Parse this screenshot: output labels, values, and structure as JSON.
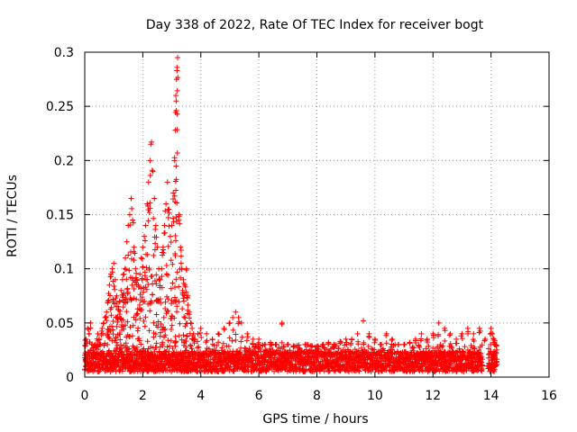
{
  "chart_data": {
    "type": "scatter",
    "title": "Day 338 of 2022, Rate Of TEC Index for receiver bogt",
    "xlabel": "GPS time / hours",
    "ylabel": "ROTI / TECUs",
    "xlim": [
      0,
      16
    ],
    "ylim": [
      0,
      0.3
    ],
    "xticks": [
      0,
      2,
      4,
      6,
      8,
      10,
      12,
      14,
      16
    ],
    "yticks": [
      0,
      0.05,
      0.1,
      0.15,
      0.2,
      0.25,
      0.3
    ],
    "xtick_labels": [
      "0",
      "2",
      "4",
      "6",
      "8",
      "10",
      "12",
      "14",
      "16"
    ],
    "ytick_labels": [
      "0",
      "0.05",
      "0.1",
      "0.15",
      "0.2",
      "0.25",
      "0.3"
    ],
    "grid": true,
    "marker": "+",
    "marker_color": "#ff0000",
    "series": [
      {
        "name": "ROTI",
        "points": [
          [
            0.0,
            0.02
          ],
          [
            0.05,
            0.035
          ],
          [
            0.1,
            0.045
          ],
          [
            0.15,
            0.04
          ],
          [
            0.2,
            0.05
          ],
          [
            0.25,
            0.03
          ],
          [
            0.3,
            0.025
          ],
          [
            0.35,
            0.02
          ],
          [
            0.4,
            0.028
          ],
          [
            0.45,
            0.04
          ],
          [
            0.5,
            0.035
          ],
          [
            0.55,
            0.03
          ],
          [
            0.6,
            0.045
          ],
          [
            0.65,
            0.05
          ],
          [
            0.7,
            0.055
          ],
          [
            0.75,
            0.06
          ],
          [
            0.8,
            0.07
          ],
          [
            0.85,
            0.085
          ],
          [
            0.9,
            0.095
          ],
          [
            0.95,
            0.1
          ],
          [
            1.0,
            0.105
          ],
          [
            1.05,
            0.09
          ],
          [
            1.1,
            0.075
          ],
          [
            1.15,
            0.065
          ],
          [
            1.2,
            0.07
          ],
          [
            1.25,
            0.08
          ],
          [
            1.3,
            0.09
          ],
          [
            1.35,
            0.095
          ],
          [
            1.4,
            0.11
          ],
          [
            1.45,
            0.125
          ],
          [
            1.5,
            0.14
          ],
          [
            1.55,
            0.15
          ],
          [
            1.6,
            0.165
          ],
          [
            1.65,
            0.145
          ],
          [
            1.7,
            0.12
          ],
          [
            1.75,
            0.1
          ],
          [
            1.8,
            0.09
          ],
          [
            1.85,
            0.085
          ],
          [
            1.9,
            0.095
          ],
          [
            1.95,
            0.11
          ],
          [
            2.0,
            0.12
          ],
          [
            2.05,
            0.13
          ],
          [
            2.1,
            0.14
          ],
          [
            2.15,
            0.16
          ],
          [
            2.2,
            0.18
          ],
          [
            2.25,
            0.2
          ],
          [
            2.3,
            0.217
          ],
          [
            2.35,
            0.19
          ],
          [
            2.4,
            0.165
          ],
          [
            2.45,
            0.14
          ],
          [
            2.5,
            0.12
          ],
          [
            2.55,
            0.1
          ],
          [
            2.6,
            0.09
          ],
          [
            2.65,
            0.1
          ],
          [
            2.7,
            0.12
          ],
          [
            2.75,
            0.14
          ],
          [
            2.8,
            0.16
          ],
          [
            2.85,
            0.18
          ],
          [
            2.9,
            0.155
          ],
          [
            2.95,
            0.13
          ],
          [
            3.0,
            0.14
          ],
          [
            3.05,
            0.17
          ],
          [
            3.1,
            0.2
          ],
          [
            3.12,
            0.228
          ],
          [
            3.14,
            0.26
          ],
          [
            3.16,
            0.275
          ],
          [
            3.18,
            0.283
          ],
          [
            3.2,
            0.295
          ],
          [
            3.25,
            0.15
          ],
          [
            3.3,
            0.12
          ],
          [
            3.35,
            0.1
          ],
          [
            3.4,
            0.09
          ],
          [
            3.45,
            0.085
          ],
          [
            3.5,
            0.1
          ],
          [
            3.55,
            0.075
          ],
          [
            3.6,
            0.06
          ],
          [
            3.65,
            0.05
          ],
          [
            3.7,
            0.045
          ],
          [
            3.75,
            0.04
          ],
          [
            3.8,
            0.035
          ],
          [
            3.9,
            0.04
          ],
          [
            4.0,
            0.045
          ],
          [
            4.2,
            0.04
          ],
          [
            4.4,
            0.035
          ],
          [
            4.6,
            0.04
          ],
          [
            4.8,
            0.045
          ],
          [
            5.0,
            0.05
          ],
          [
            5.1,
            0.055
          ],
          [
            5.2,
            0.06
          ],
          [
            5.3,
            0.055
          ],
          [
            5.4,
            0.05
          ],
          [
            5.6,
            0.04
          ],
          [
            5.8,
            0.035
          ],
          [
            6.0,
            0.035
          ],
          [
            6.2,
            0.03
          ],
          [
            6.4,
            0.032
          ],
          [
            6.6,
            0.03
          ],
          [
            6.8,
            0.05
          ],
          [
            7.0,
            0.03
          ],
          [
            7.2,
            0.028
          ],
          [
            7.4,
            0.025
          ],
          [
            7.6,
            0.03
          ],
          [
            7.8,
            0.028
          ],
          [
            8.0,
            0.025
          ],
          [
            8.2,
            0.03
          ],
          [
            8.4,
            0.032
          ],
          [
            8.6,
            0.03
          ],
          [
            8.8,
            0.033
          ],
          [
            9.0,
            0.035
          ],
          [
            9.2,
            0.035
          ],
          [
            9.4,
            0.04
          ],
          [
            9.6,
            0.052
          ],
          [
            9.8,
            0.04
          ],
          [
            10.0,
            0.035
          ],
          [
            10.2,
            0.03
          ],
          [
            10.4,
            0.04
          ],
          [
            10.6,
            0.035
          ],
          [
            10.8,
            0.03
          ],
          [
            11.0,
            0.03
          ],
          [
            11.2,
            0.032
          ],
          [
            11.4,
            0.035
          ],
          [
            11.6,
            0.04
          ],
          [
            11.8,
            0.035
          ],
          [
            12.0,
            0.04
          ],
          [
            12.2,
            0.05
          ],
          [
            12.4,
            0.045
          ],
          [
            12.6,
            0.04
          ],
          [
            12.8,
            0.035
          ],
          [
            13.0,
            0.04
          ],
          [
            13.2,
            0.045
          ],
          [
            13.4,
            0.04
          ],
          [
            13.6,
            0.045
          ],
          [
            13.8,
            0.035
          ],
          [
            14.0,
            0.045
          ],
          [
            14.05,
            0.04
          ],
          [
            14.1,
            0.035
          ],
          [
            14.15,
            0.03
          ],
          [
            14.2,
            0.025
          ]
        ],
        "baseline": {
          "segments": [
            {
              "from": 0.0,
              "to": 13.7,
              "min": 0.005,
              "max": 0.03
            },
            {
              "from": 13.9,
              "to": 14.2,
              "min": 0.005,
              "max": 0.03
            }
          ],
          "note": "dense band of low ROTI values along the bottom of the plot"
        }
      }
    ]
  }
}
